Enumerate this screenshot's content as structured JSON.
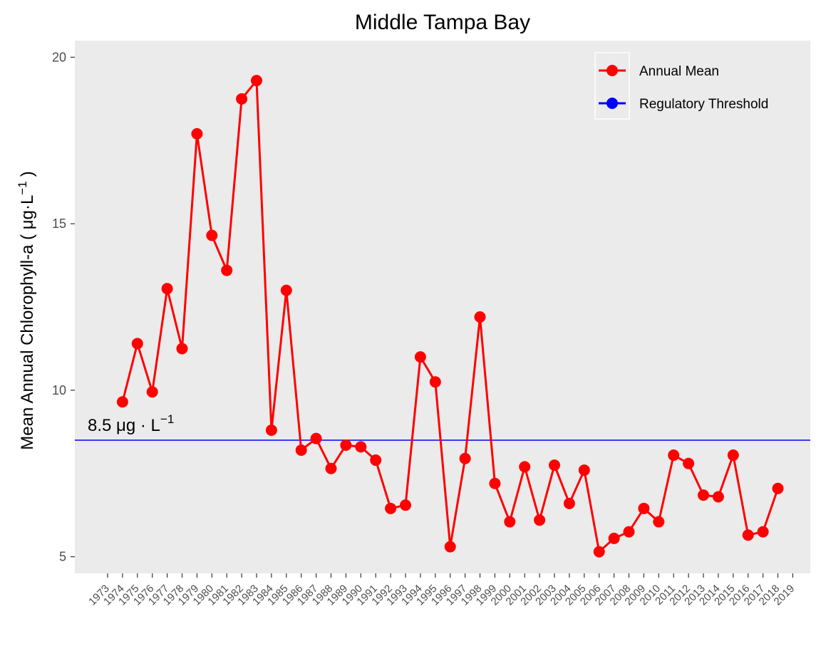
{
  "chart_data": {
    "type": "line",
    "title": "Middle Tampa Bay",
    "ylabel_main": "Mean Annual Chlorophyll-a ( ",
    "ylabel_unit": "μg·L",
    "ylabel_sup": "−1",
    "ylabel_close": ")",
    "xlabel": "",
    "ylim": [
      4.5,
      20.5
    ],
    "yticks": [
      5,
      10,
      15,
      20
    ],
    "x_categories": [
      "1973",
      "1974",
      "1975",
      "1976",
      "1977",
      "1978",
      "1979",
      "1980",
      "1981",
      "1982",
      "1983",
      "1984",
      "1985",
      "1986",
      "1987",
      "1988",
      "1989",
      "1990",
      "1991",
      "1992",
      "1993",
      "1994",
      "1995",
      "1996",
      "1997",
      "1998",
      "1999",
      "2000",
      "2001",
      "2002",
      "2003",
      "2004",
      "2005",
      "2006",
      "2007",
      "2008",
      "2009",
      "2010",
      "2011",
      "2012",
      "2013",
      "2014",
      "2015",
      "2016",
      "2017",
      "2018",
      "2019"
    ],
    "series": [
      {
        "name": "Annual Mean",
        "color": "#ff0000",
        "x": [
          "1974",
          "1975",
          "1976",
          "1977",
          "1978",
          "1979",
          "1980",
          "1981",
          "1982",
          "1983",
          "1984",
          "1985",
          "1986",
          "1987",
          "1988",
          "1989",
          "1990",
          "1991",
          "1992",
          "1993",
          "1994",
          "1995",
          "1996",
          "1997",
          "1998",
          "1999",
          "2000",
          "2001",
          "2002",
          "2003",
          "2004",
          "2005",
          "2006",
          "2007",
          "2008",
          "2009",
          "2010",
          "2011",
          "2012",
          "2013",
          "2014",
          "2015",
          "2016",
          "2017",
          "2018"
        ],
        "values": [
          9.65,
          11.4,
          9.95,
          13.05,
          11.25,
          17.7,
          14.65,
          13.6,
          18.75,
          19.3,
          8.8,
          13.0,
          8.2,
          8.55,
          7.65,
          8.35,
          8.3,
          7.9,
          6.45,
          6.55,
          11.0,
          10.25,
          5.3,
          7.95,
          12.2,
          7.2,
          6.05,
          7.7,
          6.1,
          7.75,
          6.6,
          7.6,
          5.15,
          5.55,
          5.75,
          6.45,
          6.05,
          8.05,
          7.8,
          6.85,
          6.8,
          8.05,
          5.65,
          5.75,
          7.05
        ]
      },
      {
        "name": "Regulatory Threshold",
        "color": "#0000ff",
        "value": 8.5
      }
    ],
    "annotation": {
      "value_text": "8.5",
      "unit_text": "μg · L",
      "sup_text": "−1"
    },
    "legend_position": "top-right",
    "grid": false,
    "background": "#ebebeb"
  }
}
